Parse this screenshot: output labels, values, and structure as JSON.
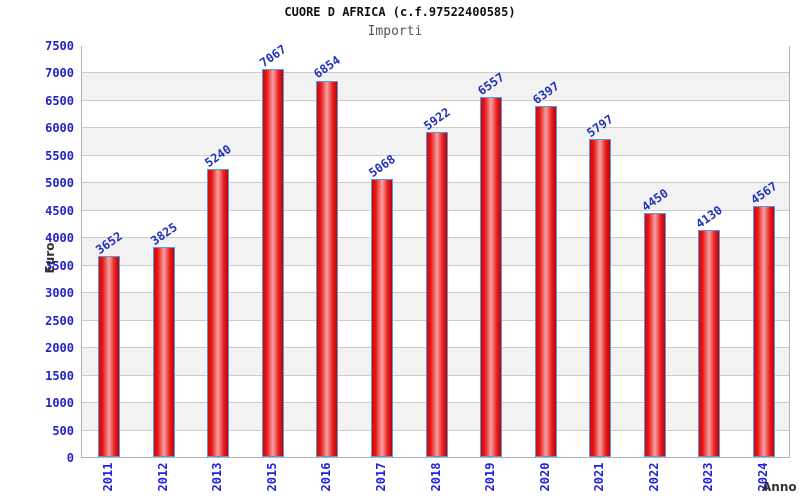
{
  "chart_data": {
    "type": "bar",
    "title": "CUORE D AFRICA (c.f.97522400585)",
    "subtitle": "Importi",
    "xlabel": "Anno",
    "ylabel": "Euro",
    "categories": [
      "2011",
      "2012",
      "2013",
      "2015",
      "2016",
      "2017",
      "2018",
      "2019",
      "2020",
      "2021",
      "2022",
      "2023",
      "2024"
    ],
    "values": [
      3652,
      3825,
      5240,
      7067,
      6854,
      5068,
      5922,
      6557,
      6397,
      5797,
      4450,
      4130,
      4567
    ],
    "ylim": [
      0,
      7500
    ],
    "ytick_step": 500,
    "grid": true,
    "legend": "none",
    "colors": {
      "bar_fill_edge": "#cc0c0c",
      "bar_fill_highlight": "#f5a2a2",
      "bar_border": "#5b99d8",
      "tick_label_blue": "#2222cc",
      "value_label_blue": "#2233bb",
      "band_gray": "#f2f2f2",
      "gridline_gray": "#cccccc",
      "plot_border_gray": "#b3b3b3",
      "title_black": "#111111",
      "subtitle_gray": "#555555",
      "axis_title_dark": "#333333"
    }
  }
}
